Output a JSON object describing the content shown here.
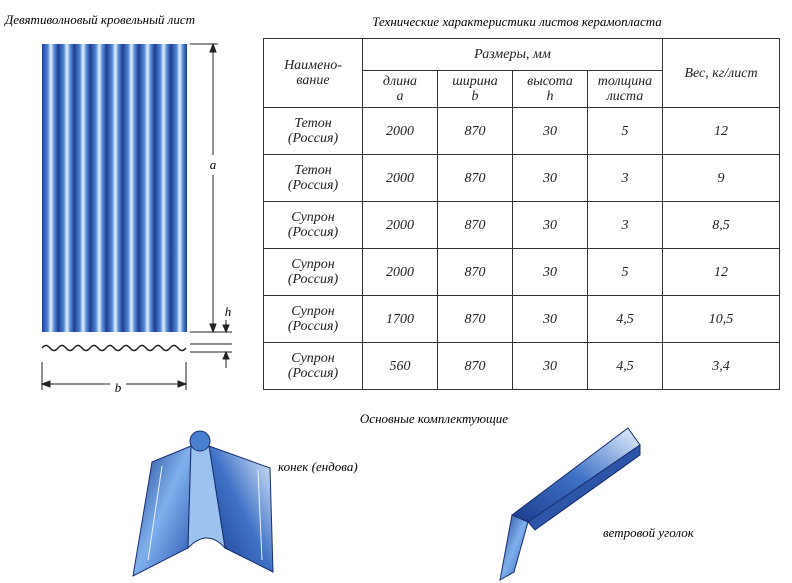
{
  "sheet": {
    "title": "Девятиволновый кровельный лист",
    "dim_a": "a",
    "dim_h": "h",
    "dim_b": "b"
  },
  "table": {
    "title": "Технические характеристики листов керамопласта",
    "header": {
      "name": "Наимено-\nвание",
      "sizes": "Размеры, мм",
      "length": "длина\na",
      "width": "ширина\nb",
      "height": "высота\nh",
      "thickness": "толщина\nлиста",
      "weight": "Вес, кг/лист"
    },
    "rows": [
      [
        "Тетон\n(Россия)",
        "2000",
        "870",
        "30",
        "5",
        "12"
      ],
      [
        "Тетон\n(Россия)",
        "2000",
        "870",
        "30",
        "3",
        "9"
      ],
      [
        "Супрон\n(Россия)",
        "2000",
        "870",
        "30",
        "3",
        "8,5"
      ],
      [
        "Супрон\n(Россия)",
        "2000",
        "870",
        "30",
        "5",
        "12"
      ],
      [
        "Супрон\n(Россия)",
        "1700",
        "870",
        "30",
        "4,5",
        "10,5"
      ],
      [
        "Супрон\n(Россия)",
        "560",
        "870",
        "30",
        "4,5",
        "3,4"
      ]
    ]
  },
  "accessories": {
    "title": "Основные комплектующие",
    "ridge": "конек (ендова)",
    "wind": "ветровой уголок"
  }
}
